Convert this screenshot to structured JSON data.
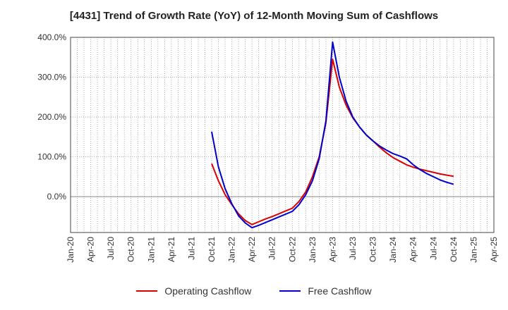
{
  "chart_data": {
    "type": "line",
    "title": "[4431]  Trend of Growth Rate (YoY) of 12-Month Moving Sum of Cashflows",
    "xlabel": "",
    "ylabel": "",
    "x_ticks": [
      "Jan-20",
      "Apr-20",
      "Jul-20",
      "Oct-20",
      "Jan-21",
      "Apr-21",
      "Jul-21",
      "Oct-21",
      "Jan-22",
      "Apr-22",
      "Jul-22",
      "Oct-22",
      "Jan-23",
      "Apr-23",
      "Jul-23",
      "Oct-23",
      "Jan-24",
      "Apr-24",
      "Jul-24",
      "Oct-24",
      "Jan-25",
      "Apr-25"
    ],
    "y_ticks": [
      "400.0%",
      "300.0%",
      "200.0%",
      "100.0%",
      "0.0%"
    ],
    "ylim": [
      -90,
      400
    ],
    "y_tick_values": [
      400,
      300,
      200,
      100,
      0
    ],
    "grid": true,
    "legend_position": "bottom",
    "x": [
      "2021-10",
      "2021-11",
      "2021-12",
      "2022-01",
      "2022-02",
      "2022-03",
      "2022-04",
      "2022-05",
      "2022-06",
      "2022-07",
      "2022-08",
      "2022-09",
      "2022-10",
      "2022-11",
      "2022-12",
      "2023-01",
      "2023-02",
      "2023-03",
      "2023-04",
      "2023-05",
      "2023-06",
      "2023-07",
      "2023-08",
      "2023-09",
      "2023-10",
      "2023-11",
      "2023-12",
      "2024-01",
      "2024-02",
      "2024-03",
      "2024-04",
      "2024-05",
      "2024-06",
      "2024-07",
      "2024-08",
      "2024-09",
      "2024-10"
    ],
    "series": [
      {
        "name": "Operating Cashflow",
        "color": "#dd0000",
        "values": [
          83,
          40,
          5,
          -20,
          -43,
          -60,
          -70,
          -63,
          -56,
          -50,
          -43,
          -36,
          -29,
          -12,
          12,
          50,
          100,
          185,
          345,
          275,
          230,
          198,
          175,
          155,
          140,
          124,
          110,
          98,
          89,
          80,
          74,
          69,
          65,
          61,
          57,
          54,
          51
        ]
      },
      {
        "name": "Free Cashflow",
        "color": "#0000cc",
        "values": [
          163,
          75,
          20,
          -18,
          -48,
          -66,
          -78,
          -72,
          -65,
          -58,
          -51,
          -44,
          -37,
          -20,
          5,
          40,
          95,
          190,
          388,
          300,
          240,
          200,
          175,
          155,
          140,
          127,
          117,
          108,
          102,
          95,
          80,
          68,
          58,
          50,
          42,
          36,
          31
        ]
      }
    ]
  }
}
